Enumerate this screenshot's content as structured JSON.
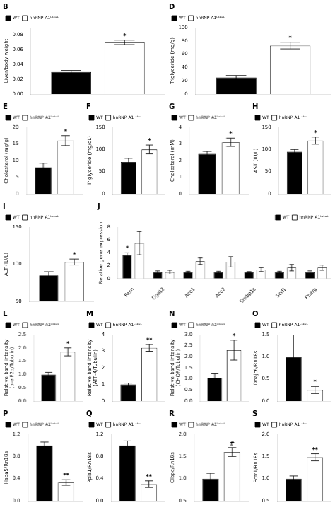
{
  "chart_data": [
    {
      "type": "bar",
      "title": "B",
      "ylabel": "Liver/body weight",
      "categories": [
        null
      ],
      "series": [
        {
          "name": "WT",
          "color": "#000000",
          "values": [
            0.03
          ],
          "errors": [
            0.002
          ]
        },
        {
          "name": "hnRNP A1ᴸˢᵏᵉᴸ",
          "color": "#ffffff",
          "values": [
            0.07
          ],
          "errors": [
            0.003
          ]
        }
      ],
      "ylim": [
        0.0,
        0.09
      ],
      "yticks": [
        {
          "value": 0,
          "label": "0.00"
        },
        0.02,
        0.04,
        0.06,
        0.08
      ],
      "grid": false,
      "legend": "upper left",
      "tick_labels": "y",
      "annotations": [
        {
          "text": "*",
          "series": "hnRNP A1ᴸˢᵏᵉᴸ"
        }
      ]
    },
    {
      "type": "bar",
      "title": "D",
      "ylabel": "Triglyceride (mg/g)",
      "categories": [
        null
      ],
      "series": [
        {
          "name": "WT",
          "color": "#000000",
          "values": [
            25
          ],
          "errors": [
            3
          ]
        },
        {
          "name": "hnRNP A1ᴸˢᵏᵉᴸ",
          "color": "#ffffff",
          "values": [
            73
          ],
          "errors": [
            5
          ]
        }
      ],
      "ylim": [
        0,
        100
      ],
      "yticks": [
        0,
        20,
        40,
        60,
        80,
        100
      ],
      "grid": false,
      "legend": "upper left",
      "tick_labels": "y",
      "annotations": [
        {
          "text": "*",
          "series": "hnRNP A1ᴸˢᵏᵉᴸ"
        }
      ]
    },
    {
      "type": "bar",
      "title": "E",
      "ylabel": "Cholesterol (mg/g)",
      "categories": [
        null
      ],
      "series": [
        {
          "name": "WT",
          "color": "#000000",
          "values": [
            8
          ],
          "errors": [
            1.2
          ]
        },
        {
          "name": "hnRNP A1ᴸˢᵏᵉᴸ",
          "color": "#ffffff",
          "values": [
            16
          ],
          "errors": [
            1.5
          ]
        }
      ],
      "ylim": [
        0,
        20
      ],
      "yticks": [
        0,
        5,
        10,
        15,
        20
      ],
      "grid": false,
      "legend": "upper left",
      "tick_labels": "y",
      "annotations": [
        {
          "text": "*",
          "series": "hnRNP A1ᴸˢᵏᵉᴸ"
        }
      ]
    },
    {
      "type": "bar",
      "title": "F",
      "ylabel": "Triglyceride (mg/dL)",
      "categories": [
        null
      ],
      "series": [
        {
          "name": "WT",
          "color": "#000000",
          "values": [
            72
          ],
          "errors": [
            8
          ]
        },
        {
          "name": "hnRNP A1ᴸˢᵏᵉᴸ",
          "color": "#ffffff",
          "values": [
            100
          ],
          "errors": [
            10
          ]
        }
      ],
      "ylim": [
        0,
        150
      ],
      "yticks": [
        0,
        50,
        100,
        150
      ],
      "grid": false,
      "legend": "upper left",
      "tick_labels": "y",
      "annotations": [
        {
          "text": "*",
          "series": "hnRNP A1ᴸˢᵏᵉᴸ"
        }
      ]
    },
    {
      "type": "bar",
      "title": "G",
      "ylabel": "Cholesterol (mM)",
      "categories": [
        null
      ],
      "series": [
        {
          "name": "WT",
          "color": "#000000",
          "values": [
            2.4
          ],
          "errors": [
            0.15
          ]
        },
        {
          "name": "hnRNP A1ᴸˢᵏᵉᴸ",
          "color": "#ffffff",
          "values": [
            3.1
          ],
          "errors": [
            0.25
          ]
        }
      ],
      "ylim": [
        0,
        4
      ],
      "yticks": [
        0,
        1,
        2,
        3,
        4
      ],
      "grid": false,
      "legend": "upper left",
      "tick_labels": "y",
      "annotations": [
        {
          "text": "*",
          "series": "hnRNP A1ᴸˢᵏᵉᴸ"
        }
      ]
    },
    {
      "type": "bar",
      "title": "H",
      "ylabel": "AST (IU/L)",
      "categories": [
        null
      ],
      "series": [
        {
          "name": "WT",
          "color": "#000000",
          "values": [
            95
          ],
          "errors": [
            5
          ]
        },
        {
          "name": "hnRNP A1ᴸˢᵏᵉᴸ",
          "color": "#ffffff",
          "values": [
            120
          ],
          "errors": [
            8
          ]
        }
      ],
      "ylim": [
        0,
        150
      ],
      "yticks": [
        0,
        50,
        100,
        150
      ],
      "grid": false,
      "legend": "upper left",
      "tick_labels": "y",
      "annotations": [
        {
          "text": "*",
          "series": "hnRNP A1ᴸˢᵏᵉᴸ"
        }
      ]
    },
    {
      "type": "bar",
      "title": "I",
      "ylabel": "ALT (IU/L)",
      "categories": [
        null
      ],
      "series": [
        {
          "name": "WT",
          "color": "#000000",
          "values": [
            85
          ],
          "errors": [
            5
          ]
        },
        {
          "name": "hnRNP A1ᴸˢᵏᵉᴸ",
          "color": "#ffffff",
          "values": [
            103
          ],
          "errors": [
            4
          ]
        }
      ],
      "ylim": [
        50,
        150
      ],
      "yticks": [
        50,
        100,
        150
      ],
      "grid": false,
      "legend": "upper left",
      "tick_labels": "y",
      "annotations": [
        {
          "text": "*",
          "series": "hnRNP A1ᴸˢᵏᵉᴸ"
        }
      ]
    },
    {
      "type": "bar",
      "title": "J",
      "ylabel": "Relative gene expression",
      "categories": [
        "Fasn",
        "Dgat2",
        "Acc1",
        "Acc2",
        "Srebp1c",
        "Scd1",
        "Pparg"
      ],
      "series": [
        {
          "name": "WT",
          "color": "#000000",
          "values": [
            3.6,
            1.0,
            1.0,
            1.0,
            1.0,
            1.0,
            1.0
          ],
          "errors": [
            0.4,
            0.2,
            0.15,
            0.15,
            0.1,
            0.15,
            0.2
          ]
        },
        {
          "name": "hnRNP A1ᴸˢᵏᵉᴸ",
          "color": "#ffffff",
          "values": [
            5.5,
            1.0,
            2.7,
            2.6,
            1.4,
            1.7,
            1.7
          ],
          "errors": [
            1.8,
            0.3,
            0.5,
            0.8,
            0.3,
            0.5,
            0.4
          ]
        }
      ],
      "ylim": [
        0,
        8
      ],
      "yticks": [
        0,
        2,
        4,
        6,
        8
      ],
      "grid": false,
      "legend": "upper right",
      "annotations": [
        {
          "text": "*",
          "series": "WT",
          "category": "Fasn"
        }
      ]
    },
    {
      "type": "bar",
      "title": "L",
      "ylabel": "Relative band intensity\n(p-eIF2α/Tubulin)",
      "categories": [
        null
      ],
      "series": [
        {
          "name": "WT",
          "color": "#000000",
          "values": [
            1.0
          ],
          "errors": [
            0.08
          ]
        },
        {
          "name": "hnRNP A1ᴸˢᵏᵉᴸ",
          "color": "#ffffff",
          "values": [
            1.85
          ],
          "errors": [
            0.15
          ]
        }
      ],
      "ylim": [
        0,
        2.5
      ],
      "yticks": [
        {
          "value": 0,
          "label": "0.0"
        },
        0.5,
        {
          "value": 1,
          "label": "1.0"
        },
        1.5,
        {
          "value": 2,
          "label": "2.0"
        },
        2.5
      ],
      "grid": false,
      "legend": "upper left",
      "tick_labels": "y",
      "annotations": [
        {
          "text": "*",
          "series": "hnRNP A1ᴸˢᵏᵉᴸ"
        }
      ]
    },
    {
      "type": "bar",
      "title": "M",
      "ylabel": "Relative band intensity\n(ATF-4/Tubulin)",
      "categories": [
        null
      ],
      "series": [
        {
          "name": "WT",
          "color": "#000000",
          "values": [
            1.0
          ],
          "errors": [
            0.08
          ]
        },
        {
          "name": "hnRNP A1ᴸˢᵏᵉᴸ",
          "color": "#ffffff",
          "values": [
            3.2
          ],
          "errors": [
            0.2
          ]
        }
      ],
      "ylim": [
        0,
        4
      ],
      "yticks": [
        0,
        1,
        2,
        3,
        4
      ],
      "grid": false,
      "legend": "upper left",
      "tick_labels": "y",
      "annotations": [
        {
          "text": "**",
          "series": "hnRNP A1ᴸˢᵏᵉᴸ"
        }
      ]
    },
    {
      "type": "bar",
      "title": "N",
      "ylabel": "Relative band intensity\n(CHOP/Tubulin)",
      "categories": [
        null
      ],
      "series": [
        {
          "name": "WT",
          "color": "#000000",
          "values": [
            1.05
          ],
          "errors": [
            0.18
          ]
        },
        {
          "name": "hnRNP A1ᴸˢᵏᵉᴸ",
          "color": "#ffffff",
          "values": [
            2.3
          ],
          "errors": [
            0.45
          ]
        }
      ],
      "ylim": [
        0,
        3
      ],
      "yticks": [
        {
          "value": 0,
          "label": "0.0"
        },
        0.5,
        {
          "value": 1,
          "label": "1.0"
        },
        1.5,
        {
          "value": 2,
          "label": "2.0"
        },
        2.5,
        {
          "value": 3,
          "label": "3.0"
        }
      ],
      "grid": false,
      "legend": "upper left",
      "tick_labels": "y",
      "annotations": [
        {
          "text": "*",
          "series": "hnRNP A1ᴸˢᵏᵉᴸ"
        }
      ]
    },
    {
      "type": "bar",
      "title": "O",
      "ylabel": "Dnajc6/Rn18s",
      "categories": [
        null
      ],
      "series": [
        {
          "name": "WT",
          "color": "#000000",
          "values": [
            1.0
          ],
          "errors": [
            0.5
          ]
        },
        {
          "name": "hnRNP A1ᴸˢᵏᵉᴸ",
          "color": "#ffffff",
          "values": [
            0.25
          ],
          "errors": [
            0.08
          ]
        }
      ],
      "ylim": [
        0.0,
        1.5
      ],
      "yticks": [
        {
          "value": 0,
          "label": "0.0"
        },
        0.5,
        {
          "value": 1,
          "label": "1.0"
        },
        1.5
      ],
      "grid": false,
      "legend": "upper left",
      "tick_labels": "y",
      "annotations": [
        {
          "text": "*",
          "series": "hnRNP A1ᴸˢᵏᵉᴸ"
        }
      ]
    },
    {
      "type": "bar",
      "title": "P",
      "ylabel": "Hspa5/Rn18s",
      "categories": [
        null
      ],
      "series": [
        {
          "name": "WT",
          "color": "#000000",
          "values": [
            1.0
          ],
          "errors": [
            0.06
          ]
        },
        {
          "name": "hnRNP A1ᴸˢᵏᵉᴸ",
          "color": "#ffffff",
          "values": [
            0.33
          ],
          "errors": [
            0.05
          ]
        }
      ],
      "ylim": [
        0.0,
        1.2
      ],
      "yticks": [
        {
          "value": 0,
          "label": "0.0"
        },
        0.4,
        0.8,
        1.2
      ],
      "grid": false,
      "legend": "upper left",
      "tick_labels": "y",
      "annotations": [
        {
          "text": "**",
          "series": "hnRNP A1ᴸˢᵏᵉᴸ"
        }
      ]
    },
    {
      "type": "bar",
      "title": "Q",
      "ylabel": "Ppia1/Rn18s",
      "categories": [
        null
      ],
      "series": [
        {
          "name": "WT",
          "color": "#000000",
          "values": [
            1.0
          ],
          "errors": [
            0.08
          ]
        },
        {
          "name": "hnRNP A1ᴸˢᵏᵉᴸ",
          "color": "#ffffff",
          "values": [
            0.3
          ],
          "errors": [
            0.06
          ]
        }
      ],
      "ylim": [
        0.0,
        1.2
      ],
      "yticks": [
        {
          "value": 0,
          "label": "0.0"
        },
        0.4,
        0.8,
        1.2
      ],
      "grid": false,
      "legend": "upper left",
      "tick_labels": "y",
      "annotations": [
        {
          "text": "**",
          "series": "hnRNP A1ᴸˢᵏᵉᴸ"
        }
      ]
    },
    {
      "type": "bar",
      "title": "R",
      "ylabel": "Clbpc/Rn18s",
      "categories": [
        null
      ],
      "series": [
        {
          "name": "WT",
          "color": "#000000",
          "values": [
            1.0
          ],
          "errors": [
            0.12
          ]
        },
        {
          "name": "hnRNP A1ᴸˢᵏᵉᴸ",
          "color": "#ffffff",
          "values": [
            1.6
          ],
          "errors": [
            0.1
          ]
        }
      ],
      "ylim": [
        0.5,
        2.0
      ],
      "yticks": [
        0.5,
        {
          "value": 1,
          "label": "1.0"
        },
        1.5,
        {
          "value": 2,
          "label": "2.0"
        }
      ],
      "grid": false,
      "legend": "upper left",
      "tick_labels": "y",
      "annotations": [
        {
          "text": "#",
          "series": "hnRNP A1ᴸˢᵏᵉᴸ"
        }
      ]
    },
    {
      "type": "bar",
      "title": "S",
      "ylabel": "Pctr1/Rn18s",
      "categories": [
        null
      ],
      "series": [
        {
          "name": "WT",
          "color": "#000000",
          "values": [
            1.0
          ],
          "errors": [
            0.06
          ]
        },
        {
          "name": "hnRNP A1ᴸˢᵏᵉᴸ",
          "color": "#ffffff",
          "values": [
            1.48
          ],
          "errors": [
            0.08
          ]
        }
      ],
      "ylim": [
        0.5,
        2.0
      ],
      "yticks": [
        0.5,
        {
          "value": 1,
          "label": "1.0"
        },
        1.5,
        {
          "value": 2,
          "label": "2.0"
        }
      ],
      "grid": false,
      "legend": "upper left",
      "tick_labels": "y",
      "annotations": [
        {
          "text": "**",
          "series": "hnRNP A1ᴸˢᵏᵉᴸ"
        }
      ]
    }
  ]
}
